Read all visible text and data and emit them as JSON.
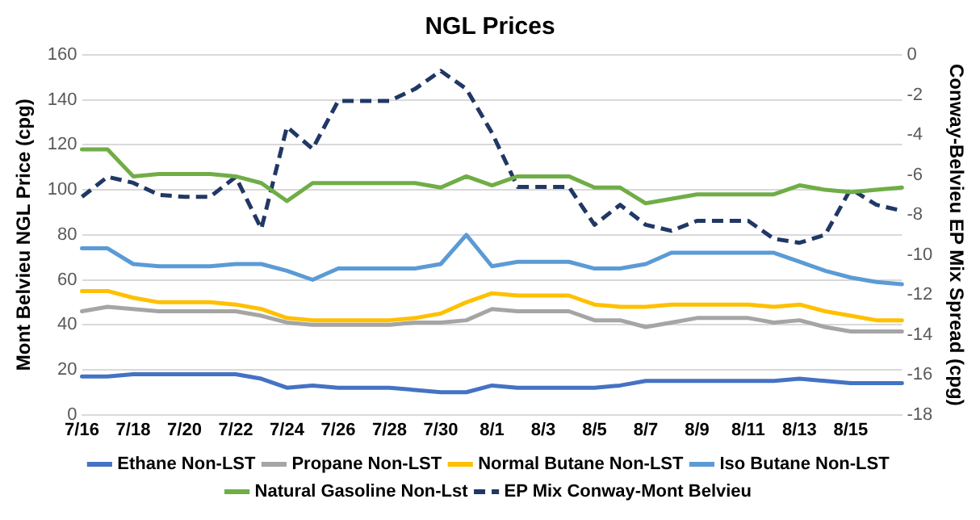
{
  "chart_data": {
    "type": "line",
    "title": "NGL Prices",
    "ylabel": "Mont Belvieu NGL Price (cpg)",
    "y2label": "Conway-Belvieu EP Mix Spread (cpg)",
    "categories": [
      "7/16",
      null,
      "7/18",
      null,
      "7/20",
      null,
      "7/22",
      null,
      "7/24",
      null,
      "7/26",
      null,
      "7/28",
      null,
      "7/30",
      null,
      "8/1",
      null,
      "8/3",
      null,
      "8/5",
      null,
      "8/7",
      null,
      "8/9",
      null,
      "8/11",
      null,
      "8/13",
      null,
      "8/15",
      null,
      null
    ],
    "ylim": [
      0,
      160
    ],
    "yticks": [
      0,
      20,
      40,
      60,
      80,
      100,
      120,
      140,
      160
    ],
    "y2lim": [
      -18,
      0
    ],
    "y2ticks": [
      -18,
      -16,
      -14,
      -12,
      -10,
      -8,
      -6,
      -4,
      -2,
      0
    ],
    "grid": "y",
    "legend": "bottom",
    "marker": "none",
    "series": [
      {
        "name": "Ethane Non-LST",
        "color": "#4472c4",
        "values": [
          17,
          17,
          18,
          18,
          18,
          18,
          18,
          16,
          12,
          13,
          12,
          12,
          12,
          11,
          10,
          10,
          13,
          12,
          12,
          12,
          12,
          13,
          15,
          15,
          15,
          15,
          15,
          15,
          16,
          15,
          14,
          14,
          14
        ]
      },
      {
        "name": "Propane Non-LST",
        "color": "#a5a5a5",
        "values": [
          46,
          48,
          47,
          46,
          46,
          46,
          46,
          44,
          41,
          40,
          40,
          40,
          40,
          41,
          41,
          42,
          47,
          46,
          46,
          46,
          42,
          42,
          39,
          41,
          43,
          43,
          43,
          41,
          42,
          39,
          37,
          37,
          37
        ]
      },
      {
        "name": "Normal Butane Non-LST",
        "color": "#ffc000",
        "values": [
          55,
          55,
          52,
          50,
          50,
          50,
          49,
          47,
          43,
          42,
          42,
          42,
          42,
          43,
          45,
          50,
          54,
          53,
          53,
          53,
          49,
          48,
          48,
          49,
          49,
          49,
          49,
          48,
          49,
          46,
          44,
          42,
          42
        ]
      },
      {
        "name": "Iso Butane Non-LST",
        "color": "#5b9bd5",
        "values": [
          74,
          74,
          67,
          66,
          66,
          66,
          67,
          67,
          64,
          60,
          65,
          65,
          65,
          65,
          67,
          80,
          66,
          68,
          68,
          68,
          65,
          65,
          67,
          72,
          72,
          72,
          72,
          72,
          68,
          64,
          61,
          59,
          58
        ]
      },
      {
        "name": "Natural Gasoline Non-Lst",
        "color": "#70ad47",
        "values": [
          118,
          118,
          106,
          107,
          107,
          107,
          106,
          103,
          95,
          103,
          103,
          103,
          103,
          103,
          101,
          106,
          102,
          106,
          106,
          106,
          101,
          101,
          94,
          96,
          98,
          98,
          98,
          98,
          102,
          100,
          99,
          100,
          101
        ]
      },
      {
        "name": "EP Mix Conway-Mont Belvieu",
        "color": "#203864",
        "axis": "y2",
        "line_style": "dashed",
        "values": [
          -7.1,
          -6.1,
          -6.4,
          -7.0,
          -7.1,
          -7.1,
          -6.1,
          -8.7,
          -3.6,
          -4.7,
          -2.3,
          -2.3,
          -2.3,
          -1.7,
          -0.8,
          -1.7,
          -3.9,
          -6.6,
          -6.6,
          -6.6,
          -8.5,
          -7.5,
          -8.5,
          -8.8,
          -8.3,
          -8.3,
          -8.3,
          -9.2,
          -9.4,
          -9.0,
          -6.7,
          -7.5,
          -7.8
        ]
      }
    ]
  }
}
